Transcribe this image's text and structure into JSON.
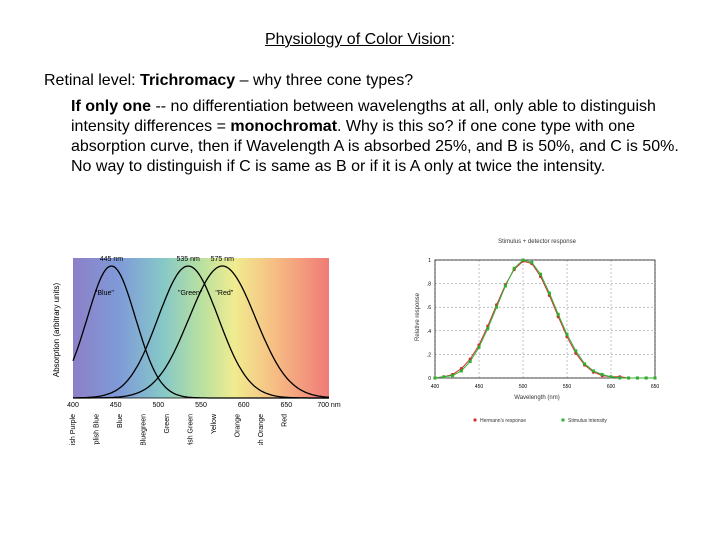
{
  "title": {
    "text": "Physiology of Color Vision",
    "suffix": ":"
  },
  "intro": {
    "prefix": "Retinal level: ",
    "bold": "Trichromacy",
    "rest": " – why three cone types?"
  },
  "para": {
    "bold1": "If only one",
    "text1": " -- no differentiation between wavelengths at all, only able to distinguish intensity differences = ",
    "bold2": "monochromat",
    "text2": ".  Why is this so? if one cone type with one absorption curve, then if Wavelength A is absorbed 25%, and B is 50%, and C is 50%.  No way to distinguish if C is same as B or if it is A only at twice the intensity."
  },
  "chart_data": [
    {
      "type": "line",
      "title": "",
      "xlabel": "",
      "ylabel": "Absorption (arbitrary units)",
      "xlim": [
        400,
        700
      ],
      "x_ticks": [
        "400",
        "450",
        "500",
        "550",
        "600",
        "650",
        "700 nm"
      ],
      "peak_labels": [
        "445 nm",
        "535 nm",
        "575 nm"
      ],
      "curve_labels": [
        "\"Blue\"",
        "\"Green\"",
        "\"Red\""
      ],
      "series": [
        {
          "name": "\"Blue\"",
          "peak": 445,
          "width": 40,
          "color": "#000000"
        },
        {
          "name": "\"Green\"",
          "peak": 535,
          "width": 50,
          "color": "#000000"
        },
        {
          "name": "\"Red\"",
          "peak": 575,
          "width": 55,
          "color": "#000000"
        }
      ],
      "color_names": [
        "Bluish Purple",
        "Purplish Blue",
        "Blue",
        "Bluegreen",
        "Green",
        "Yellowish Green",
        "Yellow",
        "Orange",
        "Reddish Orange",
        "Red"
      ]
    },
    {
      "type": "scatter",
      "title": "Stimulus + detector response",
      "xlabel": "Wavelength (nm)",
      "ylabel": "Relative response",
      "xlim": [
        400,
        650
      ],
      "ylim": [
        0,
        1
      ],
      "x_ticks": [
        "400",
        "450",
        "500",
        "550",
        "600",
        "650"
      ],
      "y_ticks": [
        "0",
        ".2",
        ".4",
        ".6",
        ".8",
        "1"
      ],
      "x": [
        400,
        410,
        420,
        430,
        440,
        450,
        460,
        470,
        480,
        490,
        500,
        510,
        520,
        530,
        540,
        550,
        560,
        570,
        580,
        590,
        600,
        610,
        620,
        630,
        640,
        650
      ],
      "series": [
        {
          "name": "Hermann's response",
          "color": "#d03030",
          "values": [
            0.0,
            0.01,
            0.03,
            0.08,
            0.16,
            0.28,
            0.44,
            0.62,
            0.79,
            0.92,
            0.99,
            0.97,
            0.86,
            0.7,
            0.52,
            0.35,
            0.21,
            0.11,
            0.05,
            0.02,
            0.01,
            0.01,
            0.0,
            0.0,
            0.0,
            0.0
          ]
        },
        {
          "name": "Stimulus intensity",
          "color": "#30b030",
          "values": [
            0.0,
            0.01,
            0.02,
            0.06,
            0.14,
            0.26,
            0.42,
            0.6,
            0.78,
            0.93,
            1.0,
            0.98,
            0.88,
            0.72,
            0.54,
            0.37,
            0.23,
            0.12,
            0.06,
            0.03,
            0.01,
            0.0,
            0.0,
            0.0,
            0.0,
            0.0
          ]
        }
      ]
    }
  ]
}
